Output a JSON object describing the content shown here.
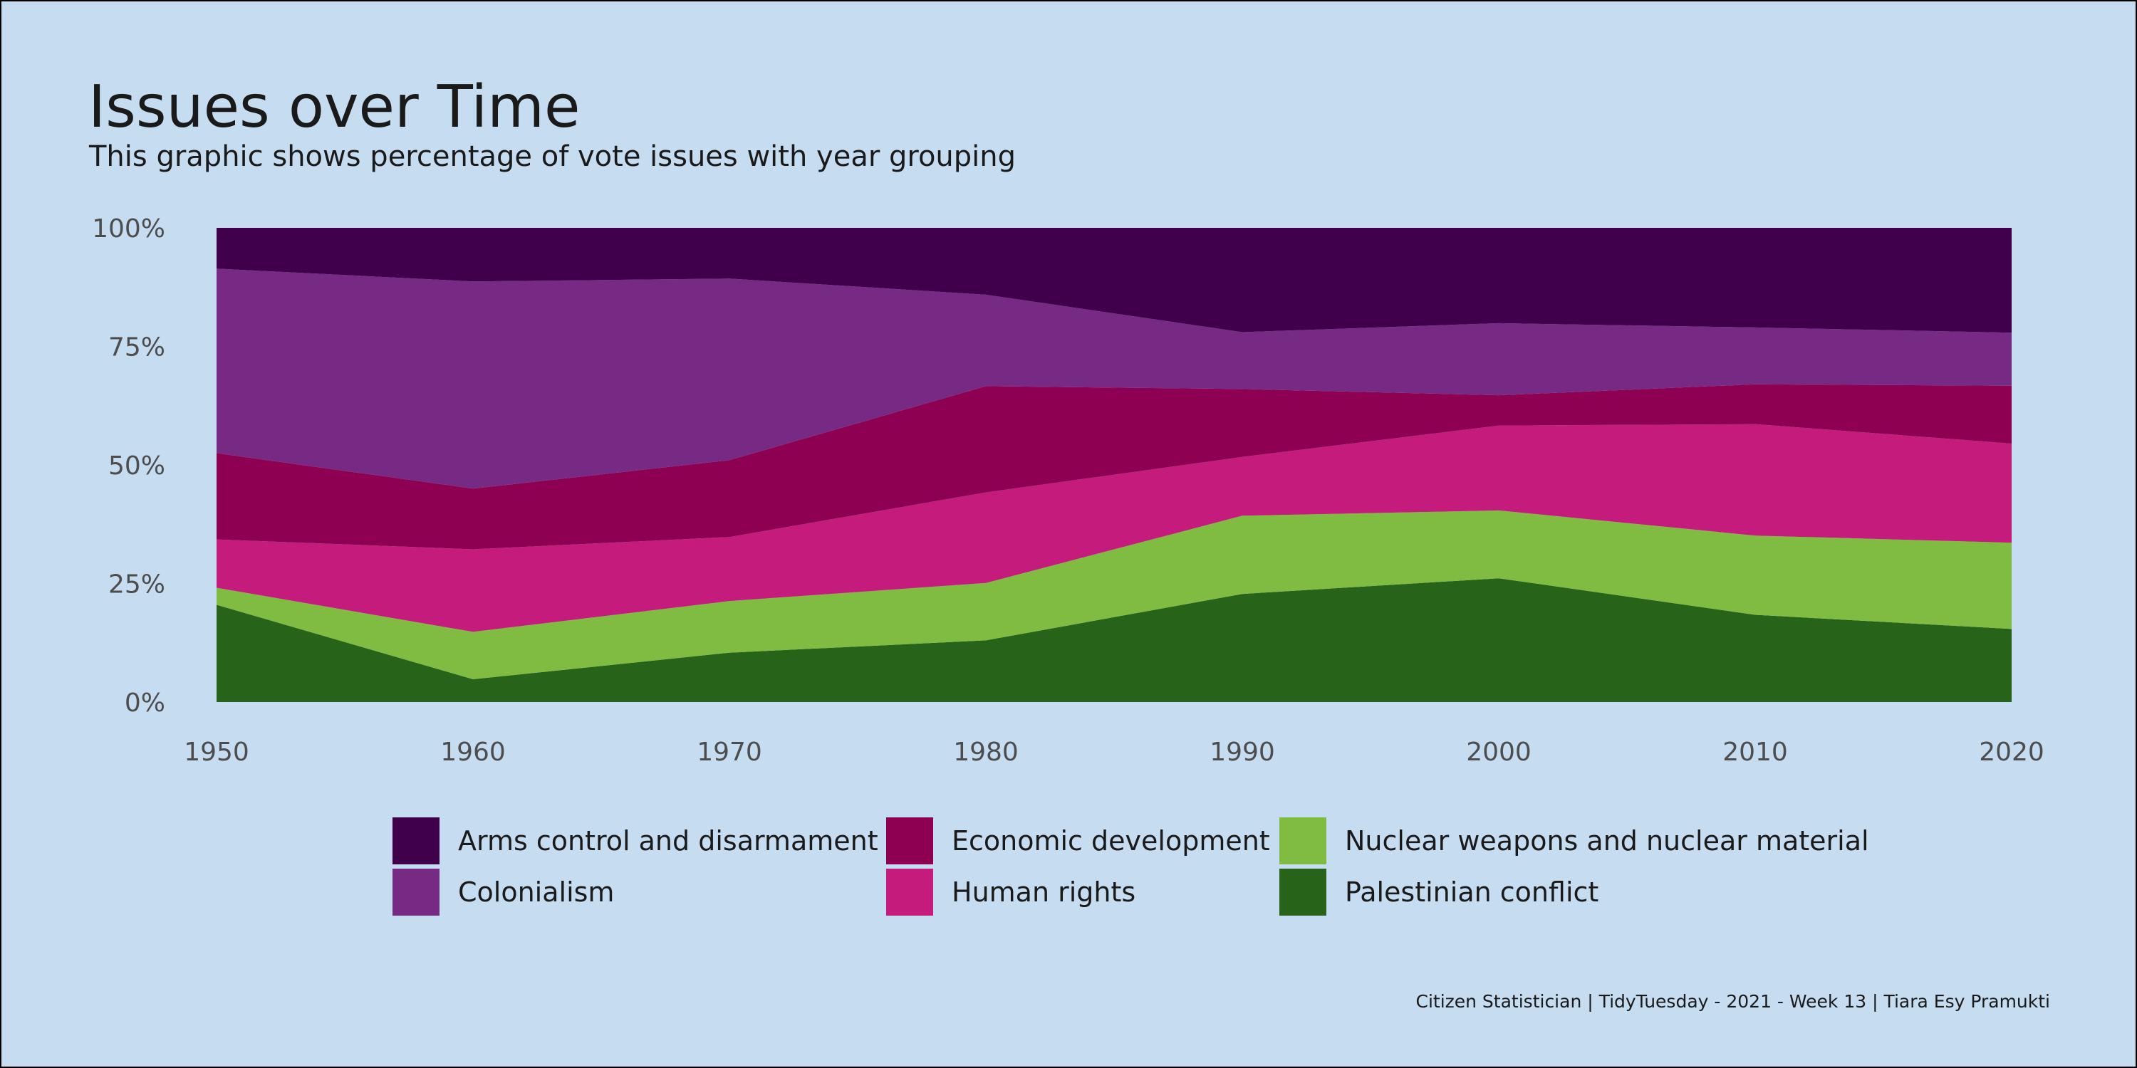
{
  "title": "Issues over Time",
  "subtitle": "This graphic shows percentage of vote issues with year grouping",
  "caption": "Citizen Statistician | TidyTuesday - 2021 - Week 13 | Tiara Esy Pramukti",
  "chart_data": {
    "type": "area",
    "stacked": true,
    "normalized": true,
    "x": [
      1950,
      1960,
      1970,
      1980,
      1990,
      2000,
      2010,
      2020
    ],
    "xticks": [
      "1950",
      "1960",
      "1970",
      "1980",
      "1990",
      "2000",
      "2010",
      "2020"
    ],
    "yticks": [
      "0%",
      "25%",
      "50%",
      "75%",
      "100%"
    ],
    "ylim": [
      0,
      1
    ],
    "xlim": [
      1950,
      2020
    ],
    "grid": false,
    "legend_position": "bottom",
    "series": [
      {
        "name": "Palestinian conflict",
        "color": "#276419",
        "values": [
          0.205,
          0.048,
          0.104,
          0.13,
          0.228,
          0.261,
          0.184,
          0.154
        ]
      },
      {
        "name": "Nuclear weapons and nuclear material",
        "color": "#7fbc41",
        "values": [
          0.036,
          0.1,
          0.109,
          0.121,
          0.165,
          0.143,
          0.167,
          0.182
        ]
      },
      {
        "name": "Human rights",
        "color": "#c51b7d",
        "values": [
          0.102,
          0.174,
          0.135,
          0.191,
          0.124,
          0.179,
          0.235,
          0.209
        ]
      },
      {
        "name": "Economic development",
        "color": "#8e0152",
        "values": [
          0.182,
          0.128,
          0.162,
          0.224,
          0.143,
          0.064,
          0.084,
          0.122
        ]
      },
      {
        "name": "Colonialism",
        "color": "#762a83",
        "values": [
          0.389,
          0.437,
          0.383,
          0.193,
          0.12,
          0.152,
          0.12,
          0.112
        ]
      },
      {
        "name": "Arms control and disarmament",
        "color": "#40004b",
        "values": [
          0.086,
          0.113,
          0.107,
          0.141,
          0.22,
          0.201,
          0.21,
          0.221
        ]
      }
    ]
  },
  "legend": {
    "items": [
      {
        "label": "Arms control and disarmament",
        "color": "#40004b"
      },
      {
        "label": "Colonialism",
        "color": "#762a83"
      },
      {
        "label": "Economic development",
        "color": "#8e0152"
      },
      {
        "label": "Human rights",
        "color": "#c51b7d"
      },
      {
        "label": "Nuclear weapons and nuclear material",
        "color": "#7fbc41"
      },
      {
        "label": "Palestinian conflict",
        "color": "#276419"
      }
    ]
  },
  "colors": {
    "background": "#c6dcf0",
    "text": "#1a1a1a",
    "axis_text": "#4d4d4d"
  }
}
